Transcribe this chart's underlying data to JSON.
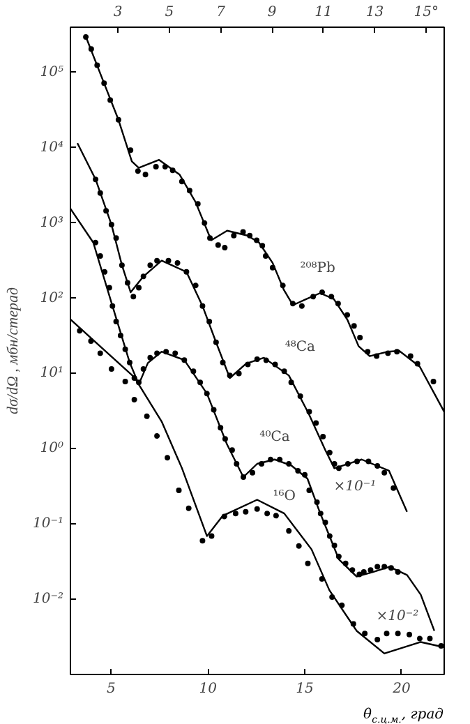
{
  "chart_data": {
    "type": "line",
    "xlabel": "θ$_{с.ц.м.}$, град",
    "ylabel": "dσ/dΩ , мбн/стерад",
    "xlim": [
      2.9,
      22.2
    ],
    "xticks": [
      5,
      10,
      15,
      20
    ],
    "x2lim": [
      1.15,
      15.7
    ],
    "x2ticks": [
      3,
      5,
      7,
      9,
      11,
      13,
      {
        "value": 15,
        "label": "15°"
      }
    ],
    "ylim": [
      0.001,
      400000
    ],
    "yticks": [
      {
        "value": 0.01,
        "label": "10⁻²"
      },
      {
        "value": 0.1,
        "label": "10⁻¹"
      },
      {
        "value": 1,
        "label": "10⁰"
      },
      {
        "value": 10,
        "label": "10¹"
      },
      {
        "value": 100,
        "label": "10²"
      },
      {
        "value": 1000,
        "label": "10³"
      },
      {
        "value": 10000,
        "label": "10⁴"
      },
      {
        "value": 100000,
        "label": "10⁵"
      }
    ],
    "log": true,
    "grid": false,
    "series": [
      {
        "name": "²⁰⁸Pb",
        "axis": "x2",
        "color": "#000000",
        "x": [
          1.75,
          2.46,
          3.02,
          3.54,
          3.81,
          4.6,
          5.4,
          6.02,
          6.63,
          7.25,
          8.04,
          8.49,
          9.02,
          9.46,
          9.81,
          10.34,
          10.87,
          11.4,
          11.93,
          12.37,
          12.8,
          13.51,
          13.95,
          14.75,
          15.7
        ],
        "values": [
          300000,
          72000,
          23500,
          6600,
          5400,
          6900,
          4400,
          1900,
          590,
          790,
          680,
          550,
          295,
          129,
          81,
          98,
          117,
          98,
          52,
          23,
          17,
          19.5,
          20,
          12.3,
          3.1
        ]
      },
      {
        "type": "scatter",
        "axis": "x2",
        "color": "#000000",
        "marker": "circle",
        "x": [
          1.75,
          1.96,
          2.19,
          2.46,
          2.7,
          3.02,
          3.49,
          3.78,
          4.07,
          4.48,
          4.84,
          5.13,
          5.49,
          5.79,
          6.11,
          6.37,
          6.58,
          6.9,
          7.16,
          7.51,
          7.87,
          8.13,
          8.4,
          8.62,
          8.75,
          9.02,
          9.42,
          9.81,
          10.16,
          10.6,
          10.95,
          11.31,
          11.57,
          11.93,
          12.19,
          12.42,
          12.72,
          13.07,
          13.51,
          13.86,
          14.39,
          14.66,
          15.28
        ],
        "values": [
          297000,
          205000,
          125000,
          72000,
          43000,
          23500,
          9300,
          4900,
          4400,
          5600,
          5600,
          5000,
          3550,
          2700,
          1800,
          1000,
          630,
          510,
          470,
          680,
          760,
          680,
          590,
          500,
          365,
          255,
          148,
          85,
          79,
          105,
          120,
          105,
          85,
          60,
          43,
          30,
          19.5,
          17,
          18.6,
          19.5,
          17,
          13.5,
          7.8
        ]
      },
      {
        "name": "⁴⁸Ca",
        "color": "#000000",
        "x": [
          3.26,
          4.2,
          5.02,
          5.56,
          6.01,
          6.67,
          7.61,
          8.89,
          9.72,
          10.42,
          11.13,
          11.97,
          12.89,
          14.18,
          15.21,
          16.06,
          16.53,
          17.94,
          19.35,
          20.28
        ],
        "values": [
          11500,
          3800,
          950,
          275,
          120,
          195,
          316,
          224,
          79,
          26,
          8.7,
          13.5,
          16.2,
          9.4,
          2.9,
          0.96,
          0.55,
          0.72,
          0.51,
          0.145
        ]
      },
      {
        "type": "scatter",
        "color": "#000000",
        "marker": "circle",
        "x": [
          4.2,
          4.44,
          4.74,
          5.02,
          5.26,
          5.56,
          5.85,
          6.15,
          6.43,
          6.67,
          7.02,
          7.37,
          7.96,
          8.43,
          8.89,
          9.37,
          9.72,
          10.07,
          10.42,
          10.77,
          11.13,
          11.6,
          12.06,
          12.54,
          13.01,
          13.47,
          13.94,
          14.3,
          14.77,
          15.23,
          15.58,
          15.94,
          16.29,
          16.53,
          16.76,
          17.23,
          17.7,
          18.29,
          18.75,
          19.11,
          19.58
        ],
        "values": [
          3800,
          2500,
          1450,
          950,
          630,
          275,
          160,
          105,
          138,
          195,
          275,
          316,
          316,
          295,
          224,
          148,
          79,
          49,
          26,
          14,
          9.4,
          10,
          13.2,
          15.5,
          15,
          13.2,
          10.7,
          7.6,
          5.0,
          3.1,
          2.2,
          1.45,
          0.89,
          0.63,
          0.55,
          0.63,
          0.68,
          0.68,
          0.59,
          0.48,
          0.3
        ]
      },
      {
        "name": "⁴⁰Ca",
        "color": "#000000",
        "x": [
          2.9,
          4.08,
          5.07,
          5.96,
          6.43,
          6.9,
          7.61,
          8.78,
          9.95,
          10.98,
          11.83,
          12.54,
          13.45,
          14.3,
          15.14,
          15.77,
          16.76,
          17.68,
          18.52,
          19.37,
          20.28,
          20.99,
          21.69
        ],
        "values": [
          1550,
          550,
          79,
          14,
          7.2,
          13.8,
          19.5,
          15.1,
          5.4,
          1.15,
          0.42,
          0.63,
          0.72,
          0.6,
          0.4,
          0.145,
          0.034,
          0.02,
          0.023,
          0.027,
          0.021,
          0.0115,
          0.0038
        ]
      },
      {
        "type": "scatter",
        "color": "#000000",
        "marker": "circle",
        "x": [
          4.2,
          4.44,
          4.67,
          4.91,
          5.07,
          5.26,
          5.49,
          5.73,
          5.96,
          6.2,
          6.43,
          6.67,
          7.02,
          7.37,
          7.84,
          8.31,
          8.78,
          9.25,
          9.6,
          9.95,
          10.3,
          10.65,
          10.89,
          11.25,
          11.48,
          11.83,
          12.3,
          12.77,
          13.24,
          13.71,
          14.18,
          14.65,
          15.0,
          15.23,
          15.63,
          15.82,
          16.06,
          16.29,
          16.53,
          16.76,
          17.11,
          17.46,
          17.82,
          18.05,
          18.4,
          18.75,
          19.11,
          19.46,
          19.81
        ],
        "values": [
          550,
          365,
          224,
          138,
          79,
          49,
          32,
          21,
          14,
          8.7,
          7.6,
          11.5,
          16.2,
          18.6,
          19.5,
          18.6,
          15.1,
          10.7,
          7.6,
          5.4,
          3.3,
          1.9,
          1.35,
          0.96,
          0.63,
          0.42,
          0.48,
          0.63,
          0.72,
          0.72,
          0.63,
          0.51,
          0.45,
          0.28,
          0.195,
          0.138,
          0.105,
          0.069,
          0.052,
          0.037,
          0.03,
          0.0245,
          0.0214,
          0.023,
          0.0245,
          0.027,
          0.027,
          0.026,
          0.023
        ]
      },
      {
        "name": "¹⁶O",
        "color": "#000000",
        "x": [
          2.91,
          6.2,
          7.61,
          8.66,
          9.95,
          10.77,
          12.54,
          13.94,
          15.35,
          16.27,
          17.68,
          19.11,
          20.99,
          22.2
        ],
        "values": [
          52,
          8.9,
          2.3,
          0.55,
          0.069,
          0.129,
          0.21,
          0.138,
          0.046,
          0.0132,
          0.0038,
          0.0019,
          0.0027,
          0.0023
        ]
      },
      {
        "type": "scatter",
        "color": "#000000",
        "marker": "circle",
        "x": [
          3.38,
          3.96,
          4.44,
          5.02,
          5.73,
          6.2,
          6.85,
          7.37,
          7.91,
          8.5,
          9.01,
          9.72,
          10.19,
          10.85,
          11.43,
          11.95,
          12.54,
          13.06,
          13.52,
          14.18,
          14.7,
          15.16,
          15.89,
          16.41,
          16.92,
          17.51,
          18.1,
          18.75,
          19.23,
          19.81,
          20.4,
          20.94,
          21.46,
          22.04
        ],
        "values": [
          37,
          27,
          18.6,
          11.5,
          7.8,
          4.5,
          2.7,
          1.48,
          0.76,
          0.28,
          0.162,
          0.06,
          0.069,
          0.126,
          0.138,
          0.145,
          0.158,
          0.138,
          0.129,
          0.081,
          0.051,
          0.03,
          0.0186,
          0.0107,
          0.0083,
          0.0047,
          0.0035,
          0.0029,
          0.0035,
          0.0035,
          0.0034,
          0.003,
          0.003,
          0.0024
        ]
      }
    ],
    "annotations": [
      "×10⁻¹",
      "×10⁻²"
    ]
  }
}
